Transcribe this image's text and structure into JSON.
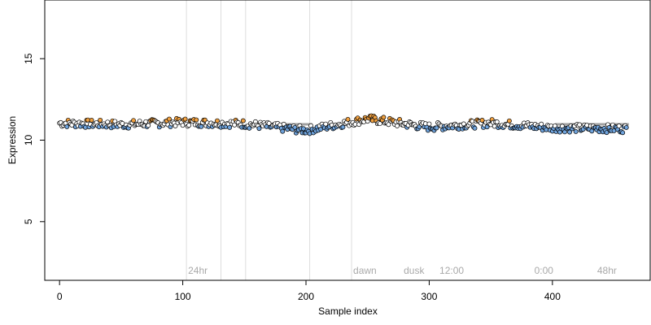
{
  "chart_data": {
    "type": "scatter",
    "xlabel": "Sample index",
    "ylabel": "Expression",
    "xlim": [
      -12,
      480
    ],
    "ylim": [
      1.4,
      18.6
    ],
    "x_ticks": [
      0,
      100,
      200,
      300,
      400
    ],
    "y_ticks": [
      5,
      10,
      15
    ],
    "grid": false,
    "colors": {
      "baseline": "#ffffff",
      "below": "#6fa3dc",
      "above": "#f0a040",
      "edge": "#000000",
      "vline": "#dddddd",
      "trend": "#a0a0a0"
    },
    "trend_segments": [
      {
        "x": [
          40,
          50
        ],
        "y": 10.97
      },
      {
        "x": [
          170,
          205
        ],
        "y": 10.97
      },
      {
        "x": [
          402,
          462
        ],
        "y": 10.97
      }
    ],
    "annotations": [
      {
        "x": 103,
        "text": "24hr"
      },
      {
        "x": 237,
        "text": "dawn"
      },
      {
        "x": 278,
        "text": "dusk"
      },
      {
        "x": 307,
        "text": "12:00"
      },
      {
        "x": 384,
        "text": "0:00"
      },
      {
        "x": 435,
        "text": "48hr"
      }
    ],
    "annotation_y": 2.0,
    "vlines": [
      103,
      131,
      151,
      203,
      237
    ],
    "series": [
      {
        "x": [
          0,
          50,
          100,
          150,
          200,
          250,
          300,
          350,
          400,
          460
        ],
        "y": [
          11.05,
          10.95,
          11.1,
          11.0,
          10.6,
          11.3,
          10.8,
          11.05,
          10.75,
          10.7
        ]
      }
    ]
  }
}
